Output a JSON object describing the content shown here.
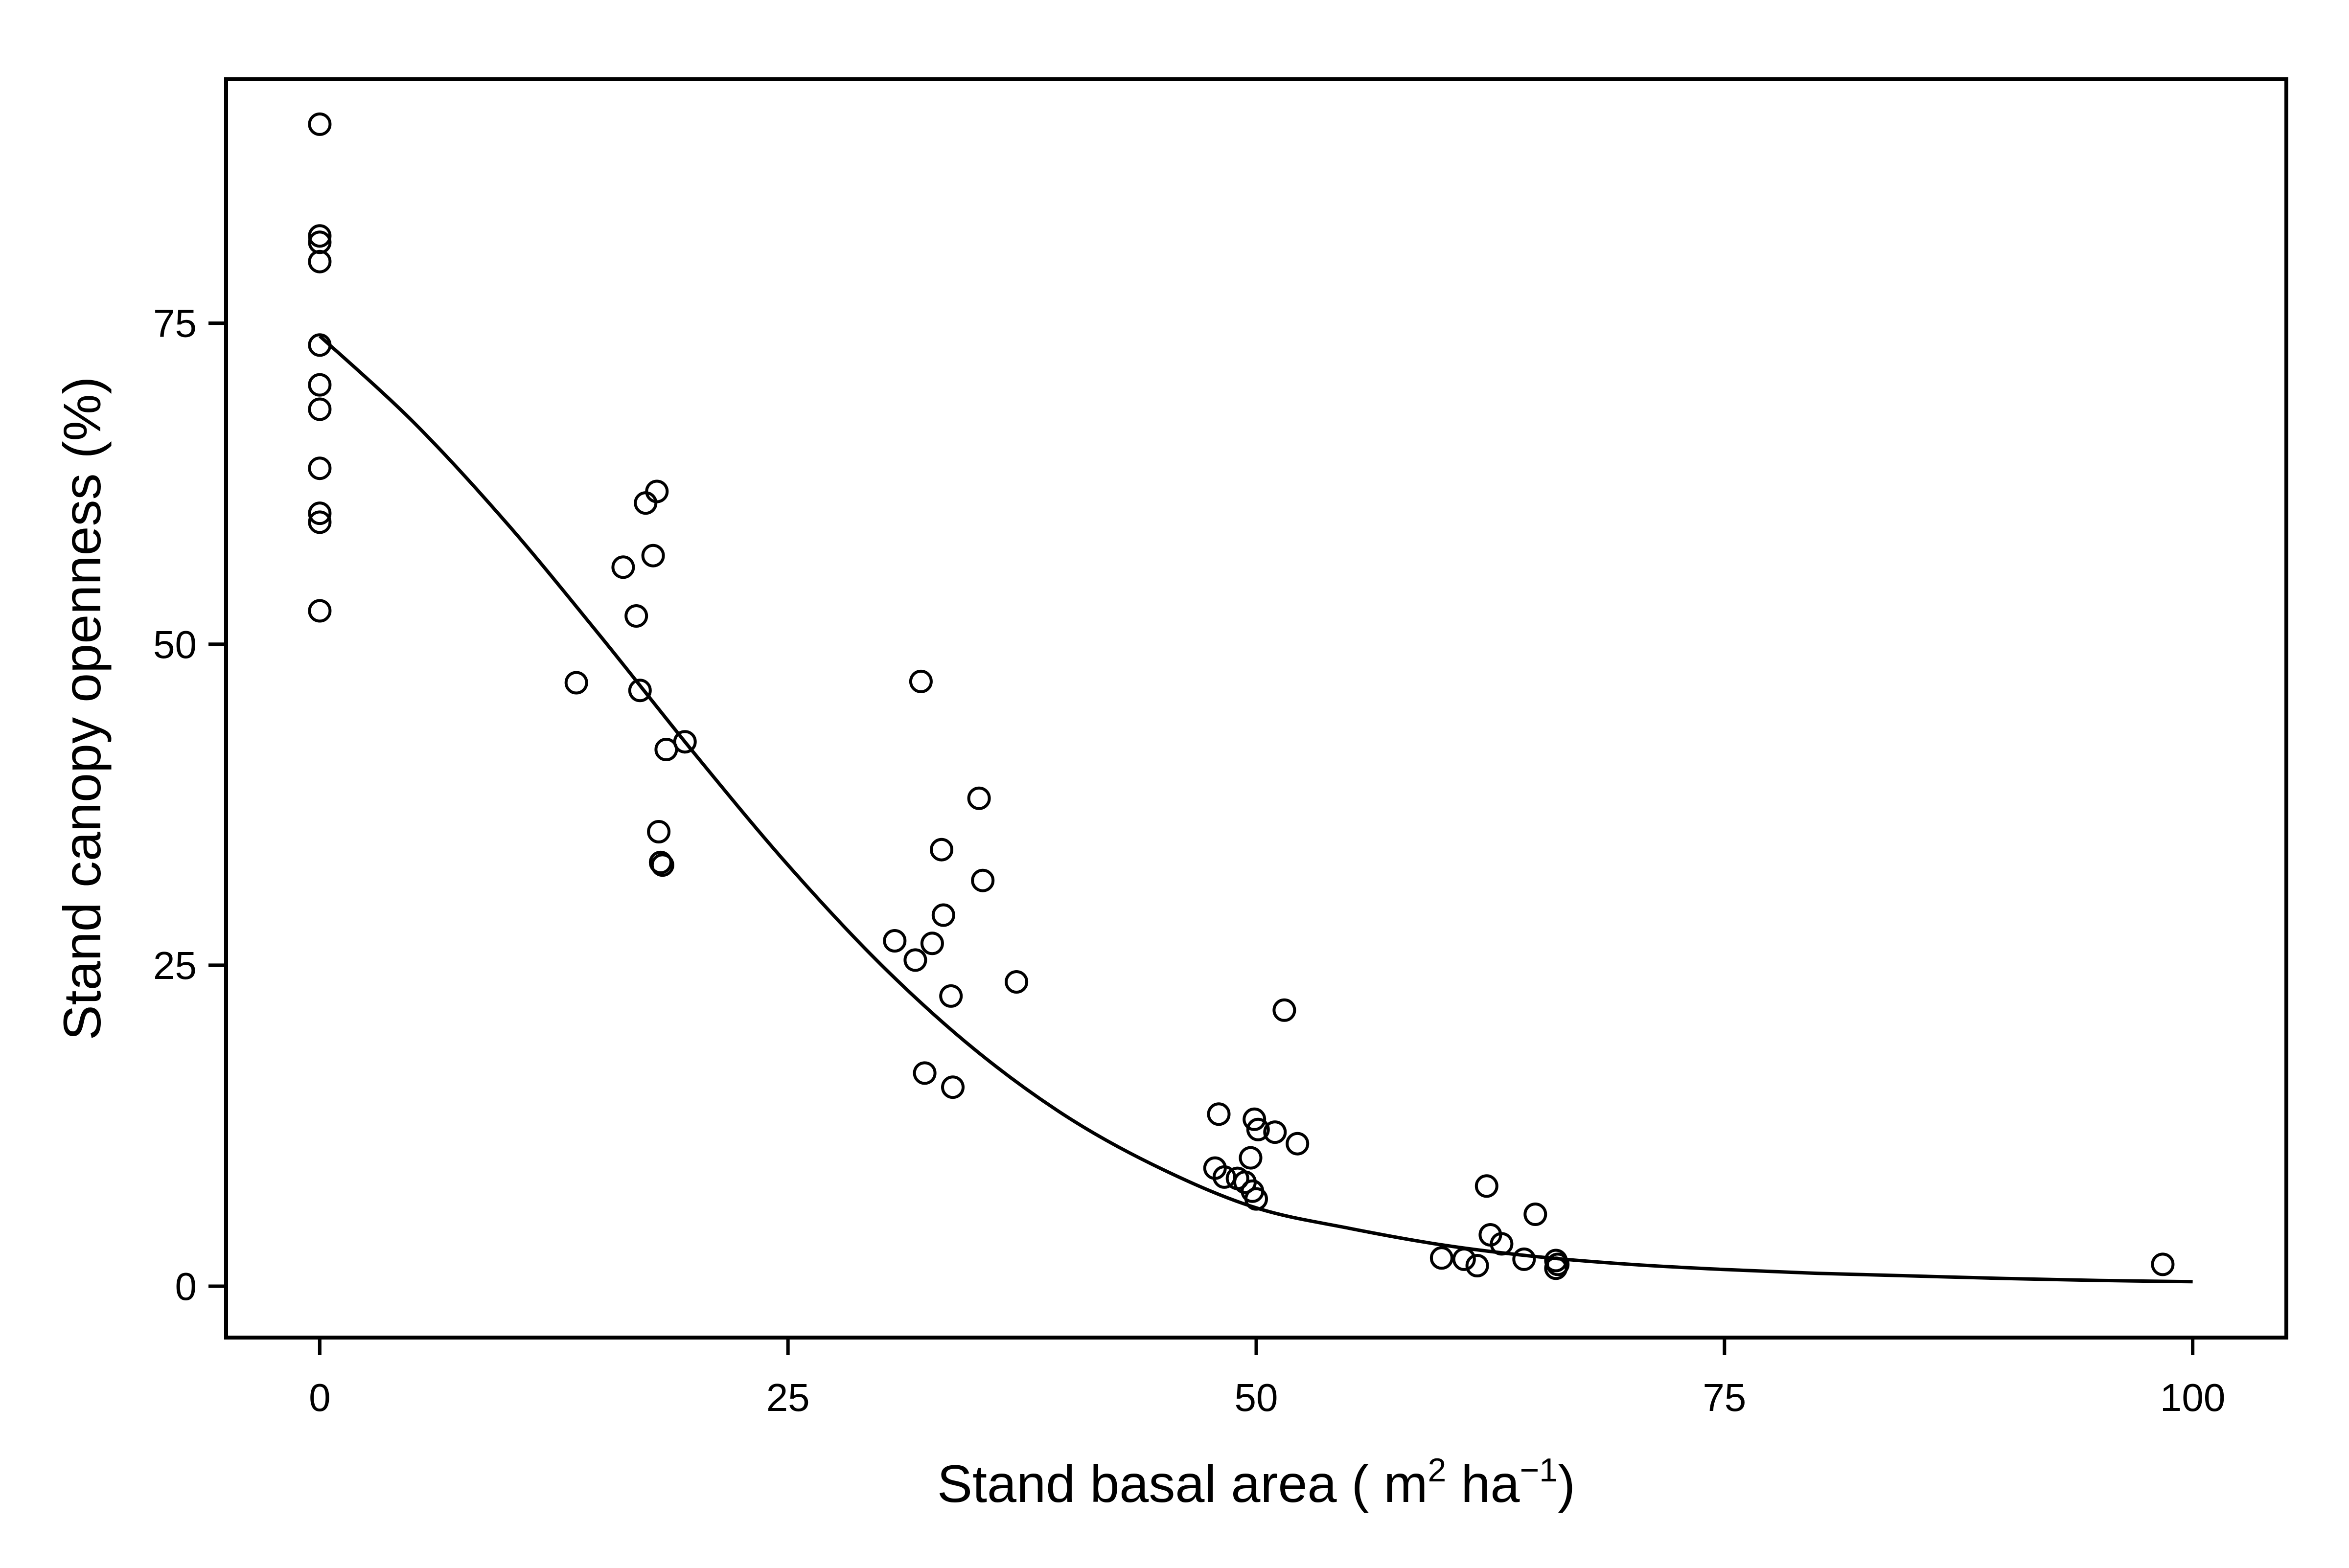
{
  "chart_data": {
    "type": "scatter",
    "xlabel": "Stand basal area ( m2 ha−1)",
    "xlabel_parts": {
      "prefix": "Stand basal area ( m",
      "sup1": "2",
      "mid": " ha",
      "sup2": "−1",
      "suffix": ")"
    },
    "ylabel": "Stand canopy openness (%)",
    "xlim": [
      -5,
      105
    ],
    "ylim": [
      -4,
      94
    ],
    "xticks": [
      0,
      25,
      50,
      75,
      100
    ],
    "xtick_labels": [
      "0",
      "25",
      "50",
      "75",
      "100"
    ],
    "yticks": [
      0,
      25,
      50,
      75
    ],
    "ytick_labels": [
      "0",
      "25",
      "50",
      "75"
    ],
    "grid": false,
    "legend": "none",
    "colors": {
      "markers": "#000000",
      "fit_line": "#000000",
      "frame": "#000000"
    },
    "series": [
      {
        "type": "scatter",
        "marker": "open-circle",
        "points": [
          [
            0,
            90.5
          ],
          [
            0,
            81.8
          ],
          [
            0,
            81.3
          ],
          [
            0,
            79.8
          ],
          [
            0,
            73.3
          ],
          [
            0,
            70.2
          ],
          [
            0,
            68.3
          ],
          [
            0,
            63.7
          ],
          [
            0,
            60.2
          ],
          [
            0,
            59.5
          ],
          [
            0,
            52.6
          ],
          [
            13.7,
            47.0
          ],
          [
            16.2,
            56.0
          ],
          [
            16.9,
            52.2
          ],
          [
            17.1,
            46.4
          ],
          [
            17.4,
            61.0
          ],
          [
            17.8,
            56.9
          ],
          [
            18.0,
            61.9
          ],
          [
            18.1,
            35.4
          ],
          [
            18.2,
            33.0
          ],
          [
            18.3,
            32.8
          ],
          [
            18.5,
            41.8
          ],
          [
            19.5,
            42.4
          ],
          [
            30.7,
            26.9
          ],
          [
            31.8,
            25.4
          ],
          [
            32.1,
            47.1
          ],
          [
            32.3,
            16.6
          ],
          [
            32.7,
            26.7
          ],
          [
            33.2,
            34.0
          ],
          [
            33.3,
            28.9
          ],
          [
            33.7,
            22.6
          ],
          [
            33.8,
            15.5
          ],
          [
            35.2,
            38.0
          ],
          [
            35.4,
            31.6
          ],
          [
            37.2,
            23.7
          ],
          [
            47.8,
            9.2
          ],
          [
            48.0,
            13.4
          ],
          [
            48.3,
            8.5
          ],
          [
            49.0,
            8.4
          ],
          [
            49.4,
            8.1
          ],
          [
            49.7,
            10.0
          ],
          [
            49.8,
            7.4
          ],
          [
            49.9,
            13.0
          ],
          [
            50.0,
            6.8
          ],
          [
            50.1,
            12.2
          ],
          [
            51.0,
            12.0
          ],
          [
            51.5,
            21.5
          ],
          [
            52.2,
            11.1
          ],
          [
            59.9,
            2.2
          ],
          [
            61.1,
            2.1
          ],
          [
            61.8,
            1.6
          ],
          [
            62.3,
            7.8
          ],
          [
            62.5,
            4.0
          ],
          [
            63.1,
            3.3
          ],
          [
            64.3,
            2.1
          ],
          [
            64.9,
            5.6
          ],
          [
            66.0,
            1.4
          ],
          [
            66.0,
            2.0
          ],
          [
            66.1,
            1.7
          ],
          [
            98.4,
            1.7
          ]
        ]
      },
      {
        "type": "line",
        "style": "fitted-curve",
        "x": [
          0,
          5,
          10,
          15,
          20,
          25,
          30,
          35,
          40,
          45,
          50,
          55,
          60,
          65,
          70,
          75,
          80,
          85,
          90,
          95,
          100
        ],
        "y": [
          74.0,
          67.3,
          59.4,
          50.6,
          41.5,
          32.8,
          25.0,
          18.4,
          13.1,
          9.1,
          6.1,
          4.5,
          3.2,
          2.3,
          1.7,
          1.3,
          1.0,
          0.8,
          0.6,
          0.45,
          0.35
        ]
      }
    ]
  }
}
